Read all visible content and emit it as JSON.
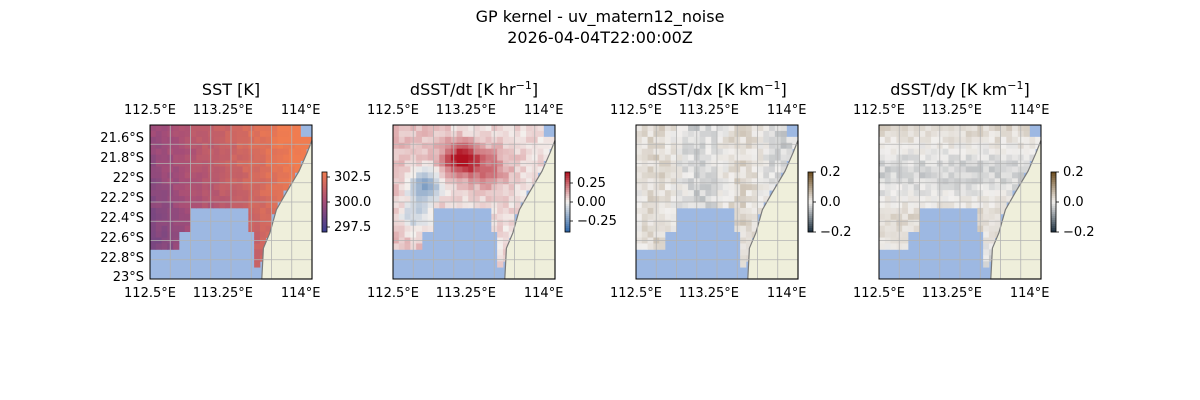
{
  "figure": {
    "title_line1": "GP kernel - uv_matern12_noise",
    "title_line2": "2026-04-04T22:00:00Z"
  },
  "colors": {
    "land": "#efefdb",
    "ocean_mask": "#9db8e2",
    "coast": "#7a7a7a",
    "grid": "#b3b3b3",
    "sst_low": "#3a3f8f",
    "sst_mid": "#a54d78",
    "sst_high": "#f07c50",
    "bal_neg": "#2a63a6",
    "bal_pos": "#b1101f",
    "bal_zero": "#f4f1ee"
  },
  "chart_data": [
    {
      "type": "heatmap",
      "title_main": "SST [K]",
      "title_sup": "",
      "x_ticks": [
        "112.5°E",
        "113.25°E",
        "114°E"
      ],
      "y_ticks": [
        "21.6°S",
        "21.8°S",
        "22°S",
        "22.2°S",
        "22.4°S",
        "22.6°S",
        "22.8°S",
        "23°S"
      ],
      "x_range": [
        112.5,
        114.0
      ],
      "y_range": [
        -23.0,
        -21.5
      ],
      "colorbar": {
        "ticks": [
          "302.5",
          "300.0",
          "297.5"
        ],
        "range": [
          297.0,
          303.0
        ],
        "cmap": "thermal"
      },
      "field": "sst"
    },
    {
      "type": "heatmap",
      "title_main": "dSST/dt [K hr",
      "title_sup": "−1",
      "title_end": "]",
      "x_ticks": [
        "112.5°E",
        "113.25°E",
        "114°E"
      ],
      "x_range": [
        112.5,
        114.0
      ],
      "y_range": [
        -23.0,
        -21.5
      ],
      "colorbar": {
        "ticks": [
          "0.25",
          "0.00",
          "−0.25"
        ],
        "range": [
          -0.4,
          0.4
        ],
        "cmap": "balance"
      },
      "field": "dt"
    },
    {
      "type": "heatmap",
      "title_main": "dSST/dx [K km",
      "title_sup": "−1",
      "title_end": "]",
      "x_ticks": [
        "112.5°E",
        "113.25°E",
        "114°E"
      ],
      "x_range": [
        112.5,
        114.0
      ],
      "y_range": [
        -23.0,
        -21.5
      ],
      "colorbar": {
        "ticks": [
          "0.2",
          "0.0",
          "−0.2"
        ],
        "range": [
          -0.2,
          0.2
        ],
        "cmap": "diff"
      },
      "field": "dx"
    },
    {
      "type": "heatmap",
      "title_main": "dSST/dy [K km",
      "title_sup": "−1",
      "title_end": "]",
      "x_ticks": [
        "112.5°E",
        "113.25°E",
        "114°E"
      ],
      "x_range": [
        112.5,
        114.0
      ],
      "y_range": [
        -23.0,
        -21.5
      ],
      "colorbar": {
        "ticks": [
          "0.2",
          "0.0",
          "−0.2"
        ],
        "range": [
          -0.2,
          0.2
        ],
        "cmap": "diff"
      },
      "field": "dy"
    }
  ]
}
